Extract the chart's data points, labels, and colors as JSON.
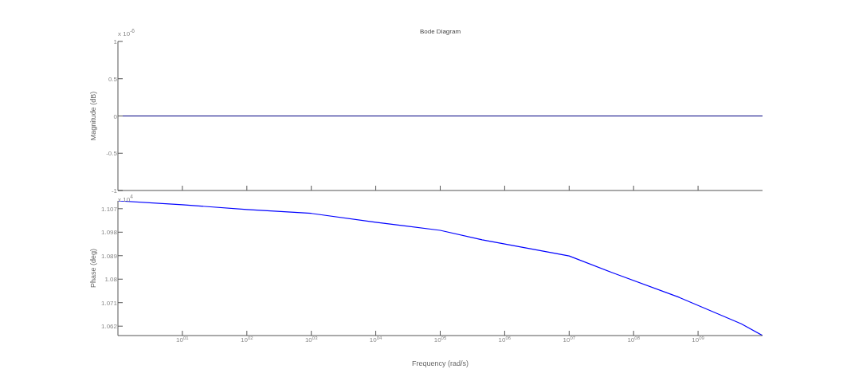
{
  "chart_data": [
    {
      "type": "line",
      "title": "Bode Diagram",
      "ylabel": "Magnitude (dB)",
      "annotations": [
        "x 10$^{-6}$"
      ],
      "log": "x",
      "tick_labels": "y",
      "xlim": [
        1,
        10000000000
      ],
      "xticks": [
        {
          "value": 10,
          "label": null
        },
        {
          "value": 100,
          "label": null
        },
        {
          "value": 1000,
          "label": null
        },
        {
          "value": 10000,
          "label": null
        },
        {
          "value": 100000,
          "label": null
        },
        {
          "value": 1000000,
          "label": null
        },
        {
          "value": 10000000,
          "label": null
        },
        {
          "value": 100000000,
          "label": null
        },
        {
          "value": 1000000000,
          "label": null
        }
      ],
      "ylim": [
        -1,
        1
      ],
      "yticks": [
        -1,
        -0.5,
        0,
        0.5,
        1
      ],
      "series": [
        {
          "color": "#000080",
          "x": [
            1,
            10000000000
          ],
          "values": [
            0,
            0
          ]
        }
      ]
    },
    {
      "type": "line",
      "xlabel": "Frequency  (rad/s)",
      "ylabel": "Phase (deg)",
      "annotations": [
        "x 10$^{4}$"
      ],
      "log": "x",
      "xlim": [
        1,
        10000000000
      ],
      "xticks": [
        {
          "value": 10,
          "label": "10$^{01}$"
        },
        {
          "value": 100,
          "label": "10$^{02}$"
        },
        {
          "value": 1000,
          "label": "10$^{03}$"
        },
        {
          "value": 10000,
          "label": "10$^{04}$"
        },
        {
          "value": 100000,
          "label": "10$^{05}$"
        },
        {
          "value": 1000000,
          "label": "10$^{06}$"
        },
        {
          "value": 10000000,
          "label": "10$^{07}$"
        },
        {
          "value": 100000000,
          "label": "10$^{08}$"
        },
        {
          "value": 1000000000,
          "label": "10$^{09}$"
        }
      ],
      "ylim": [
        1.0584,
        1.11
      ],
      "yticks": [
        1.062,
        1.071,
        1.08,
        1.089,
        1.098,
        1.107
      ],
      "series": [
        {
          "color": "#0000ff",
          "x": [
            1,
            10,
            100,
            1000,
            10000,
            100000,
            446700,
            10000000,
            50100000,
            513000000,
            4680000000,
            10000000000
          ],
          "values": [
            1.11,
            1.1085,
            1.1067,
            1.1052,
            1.1018,
            1.0987,
            1.0951,
            1.0889,
            1.0822,
            1.073,
            1.0629,
            1.0584
          ]
        }
      ]
    }
  ]
}
